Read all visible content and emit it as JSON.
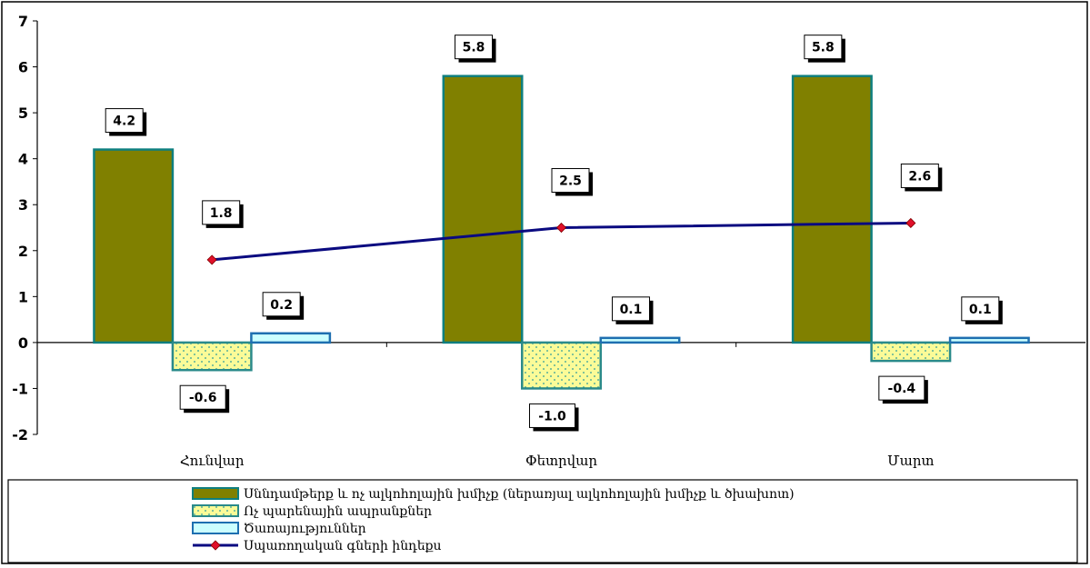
{
  "chart_data": {
    "type": "bar",
    "categories": [
      "Հունվար",
      "Փետրվար",
      "Մարտ"
    ],
    "ylim": [
      -2,
      7
    ],
    "yticks": [
      -2,
      -1,
      0,
      1,
      2,
      3,
      4,
      5,
      6,
      7
    ],
    "grid": false,
    "legend_position": "bottom",
    "series": [
      {
        "name": "Սննդամթերք և ոչ ալկոհոլային խմիչք (ներառյալ ալկոհոլային խմիչք և ծխախոտ)",
        "kind": "bar",
        "values": [
          4.2,
          5.8,
          5.8
        ],
        "labels": [
          "4.2",
          "5.8",
          "5.8"
        ],
        "color": "#808000",
        "border": "#0e7f7f"
      },
      {
        "name": "Ոչ պարենային ապրանքներ",
        "kind": "bar",
        "values": [
          -0.6,
          -1.0,
          -0.4
        ],
        "labels": [
          "-0.6",
          "-1.0",
          "-0.4"
        ],
        "color": "#fbfb98",
        "border": "#2a8a8a"
      },
      {
        "name": "Ծառայություններ",
        "kind": "bar",
        "values": [
          0.2,
          0.1,
          0.1
        ],
        "labels": [
          "0.2",
          "0.1",
          "0.1"
        ],
        "color": "#ccffff",
        "border": "#1e6fb0"
      },
      {
        "name": "Սպառողական գների ինդեքս",
        "kind": "line",
        "values": [
          1.8,
          2.5,
          2.6
        ],
        "labels": [
          "1.8",
          "2.5",
          "2.6"
        ],
        "color": "#0a0a80",
        "marker_color": "#e0102a"
      }
    ]
  }
}
